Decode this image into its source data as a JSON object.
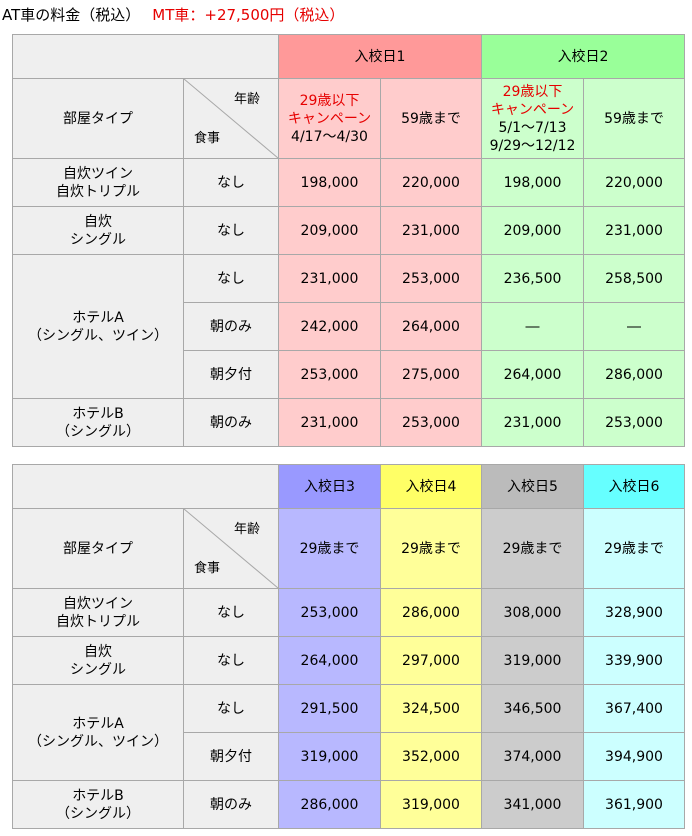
{
  "title": {
    "at": "AT車の料金（税込）",
    "mt": "MT車：+27,500円（税込）"
  },
  "labels": {
    "room_type": "部屋タイプ",
    "age": "年齢",
    "meal": "食事"
  },
  "table1": {
    "nyuko1": "入校日1",
    "nyuko2": "入校日2",
    "campaign": "29歳以下\nキャンペーン",
    "d1_period": "4/17～4/30",
    "d2_period1": "5/1～7/13",
    "d2_period2": "9/29～12/12",
    "upto59": "59歳まで",
    "rooms": {
      "jisui_twin": "自炊ツイン\n自炊トリプル",
      "jisui_single": "自炊\nシングル",
      "hotelA": "ホテルA\n（シングル、ツイン）",
      "hotelB": "ホテルB\n（シングル）"
    },
    "meals": {
      "none": "なし",
      "breakfast": "朝のみ",
      "both": "朝夕付"
    },
    "rows": [
      [
        "198,000",
        "220,000",
        "198,000",
        "220,000"
      ],
      [
        "209,000",
        "231,000",
        "209,000",
        "231,000"
      ],
      [
        "231,000",
        "253,000",
        "236,500",
        "258,500"
      ],
      [
        "242,000",
        "264,000",
        "―",
        "―"
      ],
      [
        "253,000",
        "275,000",
        "264,000",
        "286,000"
      ],
      [
        "231,000",
        "253,000",
        "231,000",
        "253,000"
      ]
    ]
  },
  "table2": {
    "nyuko3": "入校日3",
    "nyuko4": "入校日4",
    "nyuko5": "入校日5",
    "nyuko6": "入校日6",
    "upto29": "29歳まで",
    "rooms": {
      "jisui_twin": "自炊ツイン\n自炊トリプル",
      "jisui_single": "自炊\nシングル",
      "hotelA": "ホテルA\n（シングル、ツイン）",
      "hotelB": "ホテルB\n（シングル）"
    },
    "meals": {
      "none": "なし",
      "breakfast": "朝のみ",
      "both": "朝夕付"
    },
    "rows": [
      [
        "253,000",
        "286,000",
        "308,000",
        "328,900"
      ],
      [
        "264,000",
        "297,000",
        "319,000",
        "339,900"
      ],
      [
        "291,500",
        "324,500",
        "346,500",
        "367,400"
      ],
      [
        "319,000",
        "352,000",
        "374,000",
        "394,900"
      ],
      [
        "286,000",
        "319,000",
        "341,000",
        "361,900"
      ]
    ]
  },
  "colors": {
    "red_text": "#e60000",
    "pink": "#ffcccc",
    "pink_header": "#ff9999",
    "green": "#ccffcc",
    "green_header": "#99ff99",
    "blue": "#b8b8ff",
    "blue_header": "#9999ff",
    "yellow": "#ffff99",
    "yellow_header": "#ffff66",
    "gray": "#cccccc",
    "gray_header": "#bbbbbb",
    "cyan": "#ccffff",
    "cyan_header": "#66ffff"
  }
}
